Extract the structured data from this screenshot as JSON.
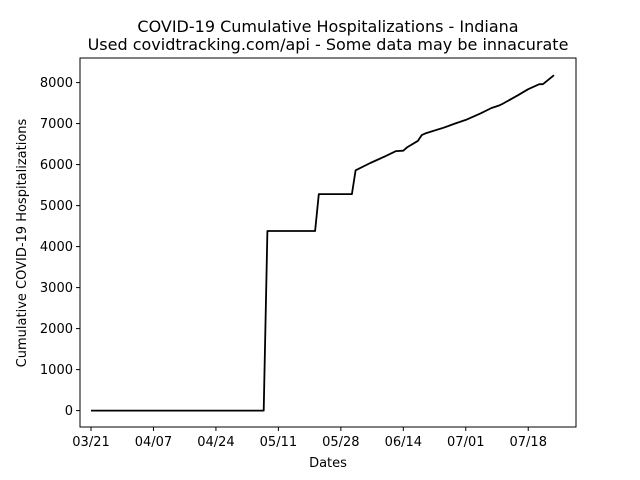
{
  "chart_data": {
    "type": "line",
    "title": "COVID-19 Cumulative Hospitalizations - Indiana",
    "subtitle": "Used covidtracking.com/api - Some data may be innacurate",
    "xlabel": "Dates",
    "ylabel": "Cumulative COVID-19 Hospitalizations",
    "xlim": [
      "2020-03-18",
      "2020-07-31"
    ],
    "ylim": [
      -400,
      8600
    ],
    "x_tick_labels": [
      "03/21",
      "04/07",
      "04/24",
      "05/11",
      "05/28",
      "06/14",
      "07/01",
      "07/18"
    ],
    "x_tick_dates": [
      "2020-03-21",
      "2020-04-07",
      "2020-04-24",
      "2020-05-11",
      "2020-05-28",
      "2020-06-14",
      "2020-07-01",
      "2020-07-18"
    ],
    "y_ticks": [
      0,
      1000,
      2000,
      3000,
      4000,
      5000,
      6000,
      7000,
      8000
    ],
    "grid": false,
    "line_color": "#000000",
    "series": [
      {
        "x": [
          "2020-03-21",
          "2020-05-07",
          "2020-05-08",
          "2020-05-21",
          "2020-05-22",
          "2020-05-31",
          "2020-06-01",
          "2020-06-05",
          "2020-06-09",
          "2020-06-12",
          "2020-06-14",
          "2020-06-15",
          "2020-06-18",
          "2020-06-19",
          "2020-06-20",
          "2020-06-25",
          "2020-06-28",
          "2020-07-01",
          "2020-07-05",
          "2020-07-08",
          "2020-07-10",
          "2020-07-11",
          "2020-07-15",
          "2020-07-18",
          "2020-07-21",
          "2020-07-22",
          "2020-07-25"
        ],
        "y": [
          0,
          0,
          4380,
          4380,
          5280,
          5280,
          5860,
          6040,
          6200,
          6330,
          6340,
          6420,
          6580,
          6720,
          6760,
          6900,
          7000,
          7090,
          7250,
          7380,
          7440,
          7480,
          7680,
          7840,
          7960,
          7960,
          8180
        ]
      }
    ]
  }
}
